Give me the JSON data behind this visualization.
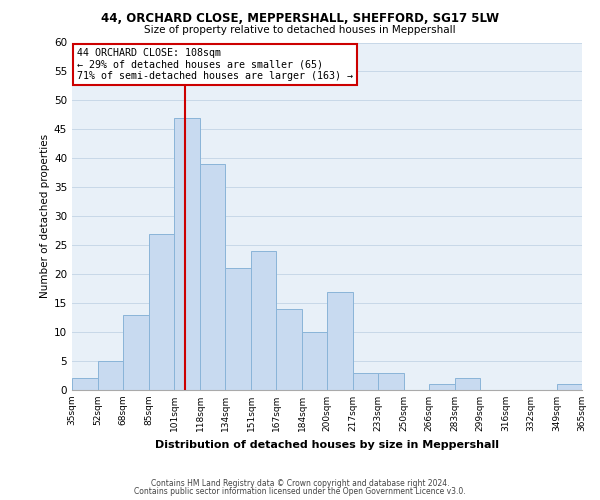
{
  "title1": "44, ORCHARD CLOSE, MEPPERSHALL, SHEFFORD, SG17 5LW",
  "title2": "Size of property relative to detached houses in Meppershall",
  "xlabel": "Distribution of detached houses by size in Meppershall",
  "ylabel": "Number of detached properties",
  "bin_edges": [
    35,
    52,
    68,
    85,
    101,
    118,
    134,
    151,
    167,
    184,
    200,
    217,
    233,
    250,
    266,
    283,
    299,
    316,
    332,
    349,
    365
  ],
  "counts": [
    2,
    5,
    13,
    27,
    47,
    39,
    21,
    24,
    14,
    10,
    17,
    3,
    3,
    0,
    1,
    2,
    0,
    0,
    0,
    1
  ],
  "bar_color": "#c8daf0",
  "bar_edge_color": "#8ab4d8",
  "vline_x": 108,
  "vline_color": "#cc0000",
  "annotation_line1": "44 ORCHARD CLOSE: 108sqm",
  "annotation_line2": "← 29% of detached houses are smaller (65)",
  "annotation_line3": "71% of semi-detached houses are larger (163) →",
  "annotation_box_facecolor": "#ffffff",
  "annotation_box_edgecolor": "#cc0000",
  "ylim": [
    0,
    60
  ],
  "yticks": [
    0,
    5,
    10,
    15,
    20,
    25,
    30,
    35,
    40,
    45,
    50,
    55,
    60
  ],
  "axes_facecolor": "#e8f0f8",
  "fig_facecolor": "#ffffff",
  "grid_color": "#c8d8e8",
  "footer1": "Contains HM Land Registry data © Crown copyright and database right 2024.",
  "footer2": "Contains public sector information licensed under the Open Government Licence v3.0."
}
